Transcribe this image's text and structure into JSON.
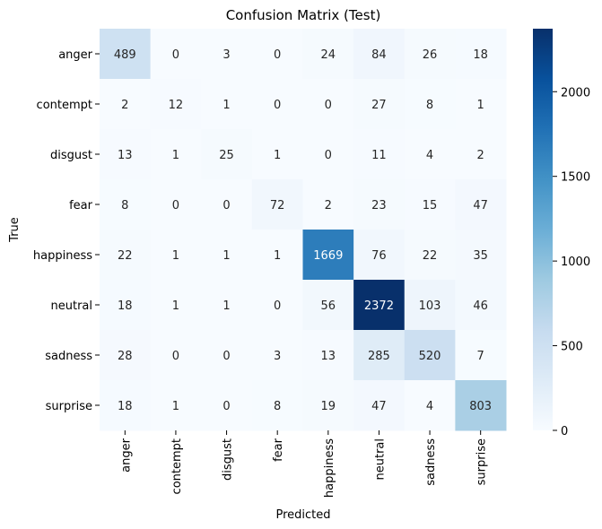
{
  "chart_data": {
    "type": "heatmap",
    "title": "Confusion Matrix (Test)",
    "xlabel": "Predicted",
    "ylabel": "True",
    "x_categories": [
      "anger",
      "contempt",
      "disgust",
      "fear",
      "happiness",
      "neutral",
      "sadness",
      "surprise"
    ],
    "y_categories": [
      "anger",
      "contempt",
      "disgust",
      "fear",
      "happiness",
      "neutral",
      "sadness",
      "surprise"
    ],
    "values": [
      [
        489,
        0,
        3,
        0,
        24,
        84,
        26,
        18
      ],
      [
        2,
        12,
        1,
        0,
        0,
        27,
        8,
        1
      ],
      [
        13,
        1,
        25,
        1,
        0,
        11,
        4,
        2
      ],
      [
        8,
        0,
        0,
        72,
        2,
        23,
        15,
        47
      ],
      [
        22,
        1,
        1,
        1,
        1669,
        76,
        22,
        35
      ],
      [
        18,
        1,
        1,
        0,
        56,
        2372,
        103,
        46
      ],
      [
        28,
        0,
        0,
        3,
        13,
        285,
        520,
        7
      ],
      [
        18,
        1,
        0,
        8,
        19,
        47,
        4,
        803
      ]
    ],
    "colormap": "Blues",
    "colorbar": {
      "range": [
        0,
        2372
      ],
      "ticks": [
        0,
        500,
        1000,
        1500,
        2000
      ]
    }
  }
}
